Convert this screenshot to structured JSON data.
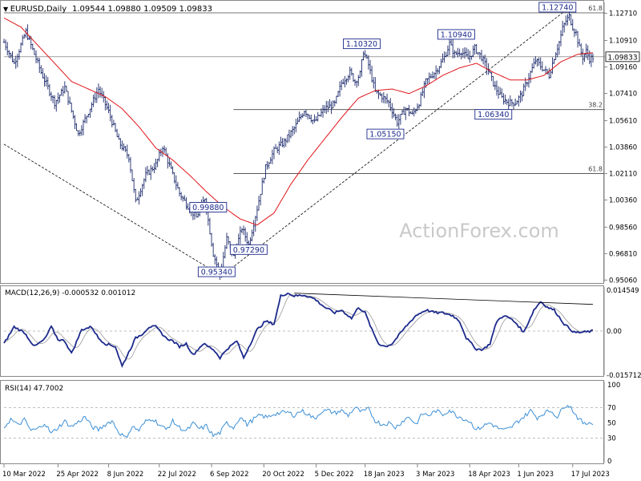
{
  "header": {
    "symbol": "EURUSD,Daily",
    "ohlc": "1.09544 1.09880 1.09509 1.09833"
  },
  "watermark": "ActionForex.com",
  "colors": {
    "candle": "#1c2a6b",
    "ma": "#e0161b",
    "macd": "#1c2a8c",
    "signal": "#999999",
    "rsi": "#3c8fd6",
    "fib": "#444444",
    "trend": "#000000",
    "text": "#000000",
    "axis": "#555555",
    "label_box": "#1c2a8c"
  },
  "chart_data": [
    {
      "type": "candlestick",
      "name": "price",
      "x_start_date": "2022-03-10",
      "xtick_labels": [
        "10 Mar 2022",
        "25 Apr 2022",
        "8 Jun 2022",
        "22 Jul 2022",
        "6 Sep 2022",
        "20 Oct 2022",
        "5 Dec 2022",
        "18 Jan 2023",
        "3 Mar 2023",
        "18 Apr 2023",
        "1 Jun 2023",
        "17 Jul 2023"
      ],
      "xtick_bar_index": [
        0,
        32,
        62,
        92,
        123,
        154,
        185,
        214,
        245,
        276,
        305,
        337
      ],
      "ytick_labels": [
        "1.12710",
        "1.10910",
        "1.09160",
        "1.07410",
        "1.05610",
        "1.03860",
        "1.02110",
        "1.00360",
        "0.98560",
        "0.96810",
        "0.95060"
      ],
      "ylim": [
        0.9492,
        1.1343
      ],
      "current_price": "1.09833",
      "current_price_value": 1.09833,
      "price_anchors": [
        [
          0,
          1.108
        ],
        [
          6,
          1.094
        ],
        [
          13,
          1.115
        ],
        [
          22,
          1.088
        ],
        [
          30,
          1.068
        ],
        [
          36,
          1.078
        ],
        [
          44,
          1.047
        ],
        [
          50,
          1.062
        ],
        [
          56,
          1.077
        ],
        [
          62,
          1.062
        ],
        [
          68,
          1.042
        ],
        [
          74,
          1.032
        ],
        [
          78,
          1.002
        ],
        [
          84,
          1.02
        ],
        [
          90,
          1.027
        ],
        [
          94,
          1.039
        ],
        [
          100,
          1.02
        ],
        [
          104,
          1.008
        ],
        [
          108,
          1.001
        ],
        [
          114,
          0.992
        ],
        [
          119,
          1.005
        ],
        [
          124,
          0.968
        ],
        [
          128,
          0.954
        ],
        [
          132,
          0.978
        ],
        [
          136,
          0.966
        ],
        [
          141,
          0.985
        ],
        [
          145,
          0.974
        ],
        [
          150,
          0.998
        ],
        [
          155,
          1.025
        ],
        [
          160,
          1.036
        ],
        [
          166,
          1.042
        ],
        [
          172,
          1.051
        ],
        [
          178,
          1.063
        ],
        [
          184,
          1.055
        ],
        [
          190,
          1.064
        ],
        [
          196,
          1.067
        ],
        [
          200,
          1.081
        ],
        [
          205,
          1.088
        ],
        [
          208,
          1.082
        ],
        [
          211,
          1.087
        ],
        [
          213,
          1.102
        ],
        [
          216,
          1.093
        ],
        [
          220,
          1.075
        ],
        [
          224,
          1.072
        ],
        [
          228,
          1.068
        ],
        [
          233,
          1.055
        ],
        [
          238,
          1.064
        ],
        [
          242,
          1.06
        ],
        [
          246,
          1.068
        ],
        [
          250,
          1.082
        ],
        [
          256,
          1.089
        ],
        [
          261,
          1.098
        ],
        [
          264,
          1.107
        ],
        [
          267,
          1.1
        ],
        [
          271,
          1.102
        ],
        [
          275,
          1.097
        ],
        [
          279,
          1.104
        ],
        [
          283,
          1.098
        ],
        [
          287,
          1.089
        ],
        [
          291,
          1.078
        ],
        [
          295,
          1.071
        ],
        [
          299,
          1.068
        ],
        [
          303,
          1.068
        ],
        [
          307,
          1.074
        ],
        [
          311,
          1.085
        ],
        [
          315,
          1.096
        ],
        [
          319,
          1.091
        ],
        [
          323,
          1.086
        ],
        [
          326,
          1.098
        ],
        [
          329,
          1.108
        ],
        [
          331,
          1.117
        ],
        [
          333,
          1.122
        ],
        [
          335,
          1.125
        ],
        [
          337,
          1.118
        ],
        [
          339,
          1.114
        ],
        [
          341,
          1.104
        ],
        [
          343,
          1.098
        ],
        [
          345,
          1.102
        ],
        [
          347,
          1.097
        ],
        [
          349,
          1.098
        ]
      ],
      "ma_anchors": [
        [
          0,
          1.124
        ],
        [
          10,
          1.118
        ],
        [
          20,
          1.106
        ],
        [
          30,
          1.094
        ],
        [
          40,
          1.082
        ],
        [
          50,
          1.077
        ],
        [
          60,
          1.072
        ],
        [
          70,
          1.064
        ],
        [
          80,
          1.052
        ],
        [
          90,
          1.038
        ],
        [
          100,
          1.03
        ],
        [
          110,
          1.02
        ],
        [
          120,
          1.009
        ],
        [
          130,
          0.999
        ],
        [
          140,
          0.991
        ],
        [
          150,
          0.987
        ],
        [
          160,
          0.995
        ],
        [
          170,
          1.014
        ],
        [
          180,
          1.03
        ],
        [
          190,
          1.044
        ],
        [
          200,
          1.058
        ],
        [
          210,
          1.071
        ],
        [
          220,
          1.076
        ],
        [
          230,
          1.077
        ],
        [
          240,
          1.074
        ],
        [
          250,
          1.079
        ],
        [
          260,
          1.086
        ],
        [
          270,
          1.091
        ],
        [
          280,
          1.094
        ],
        [
          290,
          1.088
        ],
        [
          300,
          1.083
        ],
        [
          310,
          1.083
        ],
        [
          320,
          1.086
        ],
        [
          330,
          1.095
        ],
        [
          340,
          1.1
        ],
        [
          349,
          1.101
        ]
      ],
      "annotations": [
        "1.12740",
        "1.10940",
        "1.10320",
        "1.06340",
        "1.05150",
        "0.99880",
        "0.97290",
        "0.95340"
      ],
      "annotation_values": [
        1.1274,
        1.1094,
        1.1032,
        1.0634,
        1.0515,
        0.9988,
        0.9729,
        0.9534
      ],
      "annotation_bar_index": [
        328,
        268,
        212,
        290,
        226,
        121,
        145,
        126
      ],
      "fibonacci": {
        "labels": [
          "61.8",
          "38.2",
          "61.8"
        ],
        "values": [
          1.1274,
          1.0634,
          1.0211
        ],
        "start_bar_index": [
          0,
          136,
          136
        ]
      },
      "trendlines": [
        {
          "from": [
            0,
            1.0405
          ],
          "to": [
            129,
            0.9534
          ]
        },
        {
          "from": [
            129,
            0.9534
          ],
          "to": [
            331,
            1.1274
          ]
        }
      ]
    },
    {
      "type": "line",
      "name": "MACD",
      "label": "MACD(12,26,9) -0.000532 0.001012",
      "ytick_labels": [
        "0.014549",
        "0.00",
        "-0.015712"
      ],
      "ylim": [
        -0.015712,
        0.014549
      ],
      "macd_anchors": [
        [
          0,
          -0.0045
        ],
        [
          6,
          0.0015
        ],
        [
          12,
          -0.0005
        ],
        [
          18,
          -0.0055
        ],
        [
          24,
          -0.003
        ],
        [
          28,
          0.0015
        ],
        [
          32,
          -0.003
        ],
        [
          36,
          -0.0035
        ],
        [
          40,
          -0.008
        ],
        [
          46,
          0.0005
        ],
        [
          52,
          0.0015
        ],
        [
          56,
          -0.0025
        ],
        [
          60,
          -0.0045
        ],
        [
          66,
          -0.0055
        ],
        [
          70,
          -0.0125
        ],
        [
          74,
          -0.0075
        ],
        [
          78,
          -0.0025
        ],
        [
          82,
          -0.001
        ],
        [
          86,
          0.0015
        ],
        [
          90,
          0.0015
        ],
        [
          96,
          -0.0025
        ],
        [
          100,
          -0.0035
        ],
        [
          104,
          -0.0055
        ],
        [
          108,
          -0.0045
        ],
        [
          112,
          -0.0085
        ],
        [
          118,
          -0.0045
        ],
        [
          124,
          -0.0065
        ],
        [
          128,
          -0.0095
        ],
        [
          132,
          -0.0065
        ],
        [
          138,
          -0.0035
        ],
        [
          142,
          -0.0095
        ],
        [
          146,
          -0.0045
        ],
        [
          150,
          0.0005
        ],
        [
          155,
          0.0035
        ],
        [
          160,
          0.0025
        ],
        [
          164,
          0.0125
        ],
        [
          168,
          0.0135
        ],
        [
          172,
          0.0125
        ],
        [
          178,
          0.0128
        ],
        [
          184,
          0.0115
        ],
        [
          190,
          0.0085
        ],
        [
          196,
          0.0065
        ],
        [
          200,
          0.0075
        ],
        [
          206,
          0.0045
        ],
        [
          210,
          0.0085
        ],
        [
          214,
          0.0065
        ],
        [
          218,
          0.0005
        ],
        [
          222,
          -0.0045
        ],
        [
          226,
          -0.0055
        ],
        [
          230,
          -0.0045
        ],
        [
          234,
          -0.0015
        ],
        [
          238,
          0.0015
        ],
        [
          244,
          0.0055
        ],
        [
          250,
          0.0075
        ],
        [
          256,
          0.0065
        ],
        [
          260,
          0.0065
        ],
        [
          266,
          0.0055
        ],
        [
          270,
          0.0035
        ],
        [
          274,
          -0.0025
        ],
        [
          280,
          -0.0065
        ],
        [
          284,
          -0.0065
        ],
        [
          288,
          -0.0045
        ],
        [
          292,
          0.0035
        ],
        [
          296,
          0.0055
        ],
        [
          300,
          0.0045
        ],
        [
          304,
          0.0025
        ],
        [
          308,
          -0.0005
        ],
        [
          314,
          0.0075
        ],
        [
          318,
          0.0105
        ],
        [
          322,
          0.0085
        ],
        [
          326,
          0.0075
        ],
        [
          332,
          0.0025
        ],
        [
          338,
          -0.0005
        ],
        [
          342,
          -0.0005
        ],
        [
          349,
          0.0
        ]
      ],
      "divergence_line": {
        "from": [
          172,
          0.0135
        ],
        "to": [
          349,
          0.0095
        ]
      }
    },
    {
      "type": "line",
      "name": "RSI",
      "label": "RSI(14) 47.7002",
      "ytick_labels": [
        "100",
        "70",
        "50",
        "30",
        "0"
      ],
      "ylim": [
        0,
        100
      ],
      "levels": [
        70,
        30
      ],
      "rsi_anchors": [
        [
          0,
          44
        ],
        [
          4,
          55
        ],
        [
          8,
          47
        ],
        [
          12,
          54
        ],
        [
          16,
          40
        ],
        [
          20,
          42
        ],
        [
          24,
          50
        ],
        [
          28,
          36
        ],
        [
          32,
          44
        ],
        [
          36,
          52
        ],
        [
          40,
          45
        ],
        [
          44,
          51
        ],
        [
          48,
          58
        ],
        [
          52,
          45
        ],
        [
          56,
          41
        ],
        [
          60,
          48
        ],
        [
          64,
          53
        ],
        [
          68,
          38
        ],
        [
          72,
          30
        ],
        [
          76,
          45
        ],
        [
          80,
          40
        ],
        [
          84,
          52
        ],
        [
          88,
          56
        ],
        [
          92,
          48
        ],
        [
          96,
          41
        ],
        [
          100,
          52
        ],
        [
          104,
          44
        ],
        [
          108,
          39
        ],
        [
          112,
          49
        ],
        [
          116,
          42
        ],
        [
          120,
          46
        ],
        [
          124,
          33
        ],
        [
          128,
          37
        ],
        [
          132,
          50
        ],
        [
          136,
          44
        ],
        [
          140,
          58
        ],
        [
          144,
          48
        ],
        [
          148,
          55
        ],
        [
          152,
          60
        ],
        [
          156,
          57
        ],
        [
          160,
          62
        ],
        [
          164,
          63
        ],
        [
          168,
          64
        ],
        [
          172,
          60
        ],
        [
          176,
          66
        ],
        [
          180,
          62
        ],
        [
          184,
          55
        ],
        [
          188,
          65
        ],
        [
          192,
          66
        ],
        [
          196,
          63
        ],
        [
          200,
          66
        ],
        [
          204,
          60
        ],
        [
          208,
          70
        ],
        [
          212,
          64
        ],
        [
          216,
          68
        ],
        [
          220,
          53
        ],
        [
          224,
          48
        ],
        [
          228,
          50
        ],
        [
          232,
          44
        ],
        [
          236,
          52
        ],
        [
          240,
          58
        ],
        [
          244,
          48
        ],
        [
          248,
          62
        ],
        [
          252,
          60
        ],
        [
          256,
          66
        ],
        [
          260,
          61
        ],
        [
          264,
          67
        ],
        [
          268,
          60
        ],
        [
          272,
          56
        ],
        [
          276,
          52
        ],
        [
          280,
          41
        ],
        [
          284,
          46
        ],
        [
          288,
          50
        ],
        [
          292,
          44
        ],
        [
          296,
          40
        ],
        [
          300,
          43
        ],
        [
          304,
          51
        ],
        [
          308,
          58
        ],
        [
          312,
          66
        ],
        [
          316,
          57
        ],
        [
          320,
          63
        ],
        [
          324,
          66
        ],
        [
          328,
          58
        ],
        [
          332,
          72
        ],
        [
          334,
          75
        ],
        [
          336,
          70
        ],
        [
          340,
          57
        ],
        [
          344,
          48
        ],
        [
          348,
          52
        ],
        [
          349,
          48
        ]
      ]
    }
  ]
}
